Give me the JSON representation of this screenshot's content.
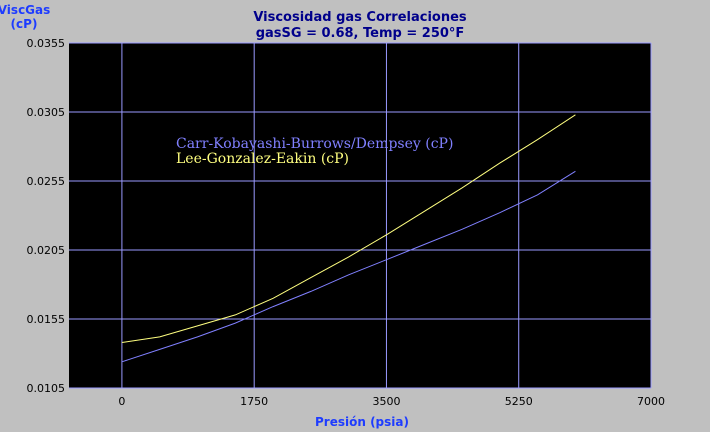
{
  "colors": {
    "background": "#c0c0c0",
    "plot_area": "#000000",
    "grid": "#9a9aff",
    "title": "#00008b",
    "axis_label": "#1e3cff",
    "tick_label": "#000000"
  },
  "chart_data": {
    "type": "line",
    "title": "Viscosidad gas Correlaciones",
    "subtitle": "gasSG = 0.68, Temp = 250°F",
    "xlabel": "Presión (psia)",
    "ylabel_line1": "ViscGas",
    "ylabel_line2": "(cP)",
    "xlim": [
      -700,
      7000
    ],
    "ylim": [
      0.0105,
      0.0355
    ],
    "x_ticks": [
      0,
      1750,
      3500,
      5250,
      7000
    ],
    "x_tick_labels": [
      "0",
      "1750",
      "3500",
      "5250",
      "7000"
    ],
    "y_ticks": [
      0.0105,
      0.0155,
      0.0205,
      0.0255,
      0.0305,
      0.0355
    ],
    "y_tick_labels": [
      "0.0105",
      "0.0155",
      "0.0205",
      "0.0255",
      "0.0305",
      "0.0355"
    ],
    "grid": true,
    "legend_placement": "upper-left inside plot",
    "series": [
      {
        "name": "Carr-Kobayashi-Burrows/Dempsey (cP)",
        "color": "#8080ff",
        "x": [
          0,
          500,
          1000,
          1500,
          2000,
          2500,
          3000,
          3500,
          4000,
          4500,
          5000,
          5500,
          6000
        ],
        "y": [
          0.0124,
          0.0133,
          0.0142,
          0.0152,
          0.0164,
          0.0175,
          0.0187,
          0.0198,
          0.0209,
          0.022,
          0.0232,
          0.0245,
          0.0262
        ]
      },
      {
        "name": "Lee-Gonzalez-Eakin (cP)",
        "color": "#ffff80",
        "x": [
          0,
          500,
          1000,
          1500,
          2000,
          2500,
          3000,
          3500,
          4000,
          4500,
          5000,
          5500,
          6000
        ],
        "y": [
          0.0138,
          0.0142,
          0.015,
          0.0158,
          0.017,
          0.0185,
          0.02,
          0.0216,
          0.0233,
          0.025,
          0.0268,
          0.0285,
          0.0303
        ]
      }
    ]
  }
}
